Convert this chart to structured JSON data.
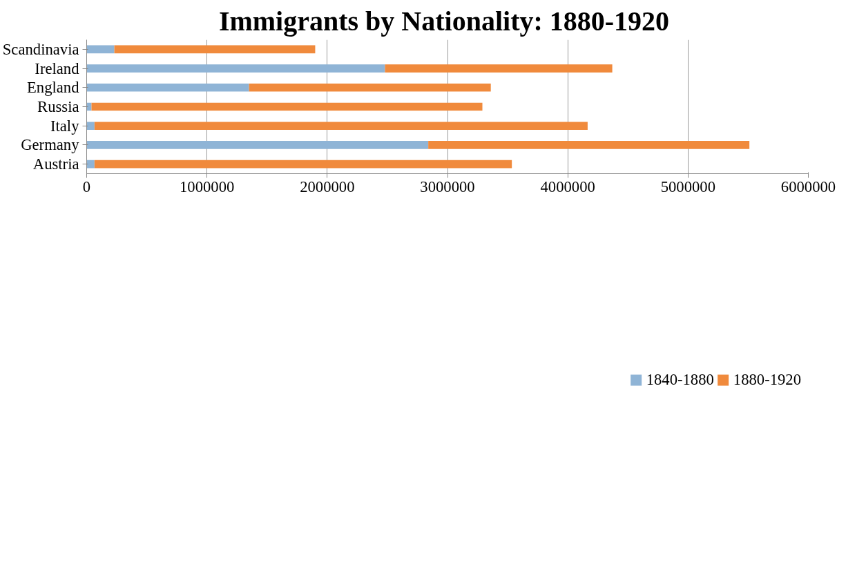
{
  "chart_data": {
    "type": "bar",
    "orientation": "horizontal",
    "stacked": true,
    "title": "Immigrants by Nationality:  1880-1920",
    "categories": [
      "Scandinavia",
      "Ireland",
      "England",
      "Russia",
      "Italy",
      "Germany",
      "Austria"
    ],
    "series": [
      {
        "name": "1840-1880",
        "color": "#8fb4d6",
        "values": [
          230000,
          2480000,
          1350000,
          40000,
          65000,
          2840000,
          65000
        ]
      },
      {
        "name": "1880-1920",
        "color": "#f08a3c",
        "values": [
          1670000,
          1890000,
          2010000,
          3250000,
          4100000,
          2670000,
          3470000
        ]
      }
    ],
    "xlim": [
      0,
      6000000
    ],
    "xticks": [
      0,
      1000000,
      2000000,
      3000000,
      4000000,
      5000000,
      6000000
    ],
    "grid": "x",
    "legend": "bottom"
  }
}
